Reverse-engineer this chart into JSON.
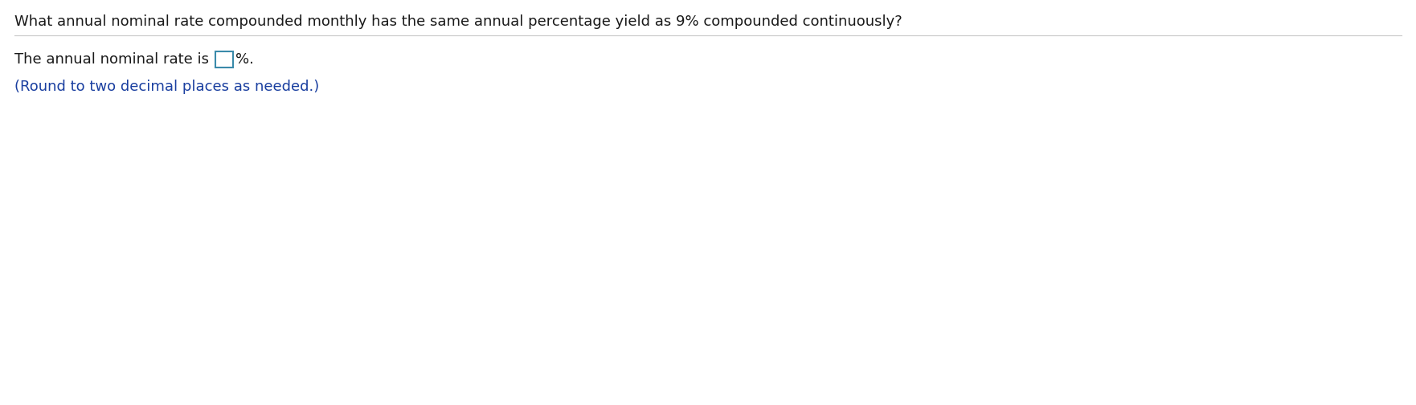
{
  "question_text": "What annual nominal rate compounded monthly has the same annual percentage yield as 9% compounded continuously?",
  "answer_pre": "The annual nominal rate is ",
  "answer_post": "%.",
  "hint_text": "(Round to two decimal places as needed.)",
  "background_color": "#ffffff",
  "question_color": "#1a1a1a",
  "answer_color": "#1a1a1a",
  "hint_color": "#1a3fa0",
  "separator_color": "#c8c8c8",
  "box_edge_color": "#3a8aaa",
  "question_fontsize": 13.0,
  "answer_fontsize": 13.0,
  "hint_fontsize": 13.0,
  "fig_width": 17.62,
  "fig_height": 5.04,
  "dpi": 100
}
